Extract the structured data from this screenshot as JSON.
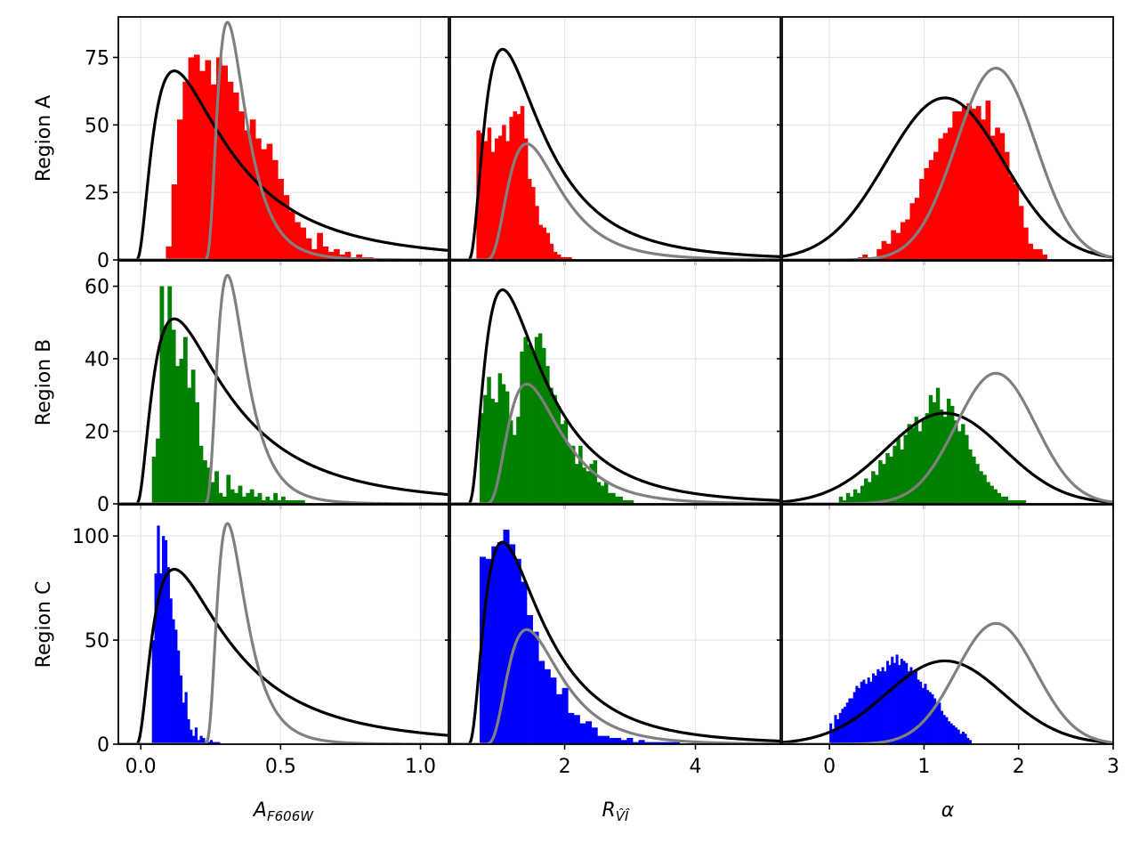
{
  "chart_data": {
    "type": "histogram-grid",
    "rows": [
      {
        "name": "Region A",
        "key": "A",
        "color": "#ff0000"
      },
      {
        "name": "Region B",
        "key": "B",
        "color": "#008000"
      },
      {
        "name": "Region C",
        "key": "C",
        "color": "#0000ff"
      }
    ],
    "columns": [
      {
        "key": "av",
        "xlabel_main": "A",
        "xlabel_sub": "F606W",
        "xlim": [
          -0.08,
          1.1
        ],
        "xticks": [
          0.0,
          0.5,
          1.0
        ],
        "xtick_labels": [
          "0.0",
          "0.5",
          "1.0"
        ]
      },
      {
        "key": "rv",
        "xlabel_main": "R",
        "xlabel_sub": "V̂Î",
        "xlim": [
          0.25,
          5.3
        ],
        "xticks": [
          2,
          4
        ],
        "xtick_labels": [
          "2",
          "4"
        ]
      },
      {
        "key": "alpha",
        "xlabel_main": "α",
        "xlabel_sub": "",
        "xlim": [
          -0.5,
          3.0
        ],
        "xticks": [
          0,
          1,
          2,
          3
        ],
        "xtick_labels": [
          "0",
          "1",
          "2",
          "3"
        ]
      }
    ],
    "ylim": {
      "A": [
        0,
        90
      ],
      "B": [
        0,
        67
      ],
      "C": [
        0,
        115
      ]
    },
    "yticks": {
      "A": [
        0,
        25,
        50,
        75
      ],
      "B": [
        0,
        20,
        40,
        60
      ],
      "C": [
        0,
        50,
        100
      ]
    },
    "ytick_labels": {
      "A": [
        "0",
        "25",
        "50",
        "75"
      ],
      "B": [
        "0",
        "20",
        "40",
        "60"
      ],
      "C": [
        "0",
        "50",
        "100"
      ]
    },
    "histograms": {
      "A": {
        "av": {
          "start": 0.09,
          "width": 0.02,
          "counts": [
            5,
            28,
            52,
            66,
            75,
            76,
            70,
            74,
            65,
            75,
            72,
            66,
            62,
            55,
            48,
            52,
            45,
            41,
            43,
            37,
            30,
            24,
            18,
            14,
            12,
            8,
            4,
            10,
            5,
            3,
            4,
            2,
            3,
            1,
            2,
            1,
            1
          ]
        },
        "rv": {
          "start": 0.65,
          "width": 0.056,
          "counts": [
            48,
            47,
            44,
            49,
            40,
            45,
            46,
            50,
            44,
            53,
            55,
            54,
            57,
            45,
            30,
            27,
            20,
            13,
            12,
            10,
            6,
            3,
            2,
            1,
            1,
            1
          ]
        },
        "alpha": {
          "start": 0.3,
          "width": 0.05,
          "counts": [
            1,
            2,
            1,
            1,
            4,
            7,
            6,
            11,
            10,
            14,
            15,
            21,
            23,
            30,
            34,
            37,
            40,
            45,
            47,
            49,
            55,
            55,
            57,
            58,
            56,
            57,
            52,
            59,
            46,
            49,
            47,
            40,
            31,
            28,
            20,
            12,
            6,
            4,
            4,
            2
          ]
        }
      },
      "B": {
        "av": {
          "start": 0.04,
          "width": 0.014,
          "counts": [
            13,
            18,
            60,
            49,
            60,
            48,
            38,
            40,
            46,
            32,
            37,
            28,
            16,
            12,
            10,
            6,
            9,
            3,
            2,
            8,
            4,
            3,
            5,
            2,
            3,
            4,
            2,
            3,
            1,
            2,
            1,
            3,
            1,
            2,
            1,
            1,
            1,
            1,
            1
          ]
        },
        "rv": {
          "start": 0.7,
          "width": 0.056,
          "counts": [
            25,
            30,
            35,
            29,
            28,
            36,
            33,
            31,
            23,
            19,
            24,
            42,
            46,
            44,
            42,
            46,
            47,
            43,
            38,
            32,
            30,
            27,
            22,
            23,
            16,
            16,
            11,
            16,
            10,
            9,
            11,
            12,
            6,
            5,
            6,
            3,
            3,
            2,
            2,
            1,
            1,
            1
          ]
        },
        "alpha": {
          "start": 0.1,
          "width": 0.038,
          "counts": [
            2,
            1,
            3,
            2,
            4,
            3,
            5,
            7,
            6,
            9,
            8,
            12,
            11,
            14,
            13,
            16,
            18,
            15,
            19,
            22,
            21,
            24,
            20,
            23,
            25,
            30,
            28,
            32,
            26,
            24,
            29,
            27,
            23,
            20,
            22,
            19,
            15,
            13,
            11,
            9,
            8,
            6,
            5,
            4,
            3,
            2,
            2,
            1,
            1,
            1,
            1,
            1
          ]
        }
      },
      "C": {
        "av": {
          "start": 0.04,
          "width": 0.009,
          "counts": [
            50,
            82,
            105,
            82,
            100,
            98,
            85,
            70,
            60,
            55,
            45,
            33,
            20,
            25,
            12,
            7,
            4,
            8,
            2,
            4,
            3,
            1,
            1,
            2,
            1,
            1,
            1
          ]
        },
        "rv": {
          "start": 0.7,
          "width": 0.09,
          "counts": [
            90,
            89,
            95,
            97,
            103,
            96,
            89,
            78,
            62,
            54,
            40,
            36,
            32,
            24,
            27,
            15,
            14,
            10,
            11,
            8,
            4,
            4,
            3,
            3,
            2,
            3,
            1,
            2,
            1,
            1,
            1,
            1,
            1,
            1
          ]
        },
        "alpha": {
          "start": 0.0,
          "width": 0.025,
          "counts": [
            10,
            6,
            14,
            12,
            15,
            17,
            18,
            20,
            22,
            22,
            25,
            28,
            27,
            30,
            31,
            29,
            32,
            30,
            34,
            33,
            36,
            35,
            37,
            35,
            40,
            38,
            42,
            39,
            43,
            38,
            41,
            40,
            39,
            35,
            37,
            34,
            36,
            31,
            30,
            27,
            29,
            26,
            25,
            24,
            22,
            19,
            20,
            16,
            14,
            13,
            11,
            10,
            9,
            8,
            7,
            5,
            6,
            5,
            3,
            2
          ]
        }
      }
    },
    "curves": [
      {
        "name": "black curve",
        "color": "#000000",
        "peaks": {
          "A": {
            "av": 70,
            "rv": 78,
            "alpha": 60
          },
          "B": {
            "av": 51,
            "rv": 59,
            "alpha": 25
          },
          "C": {
            "av": 84,
            "rv": 97,
            "alpha": 40
          }
        }
      },
      {
        "name": "gray curve",
        "color": "#808080",
        "peaks": {
          "A": {
            "av": 88,
            "rv": 43,
            "alpha": 71
          },
          "B": {
            "av": 63,
            "rv": 33,
            "alpha": 36
          },
          "C": {
            "av": 106,
            "rv": 55,
            "alpha": 58
          }
        }
      }
    ]
  }
}
